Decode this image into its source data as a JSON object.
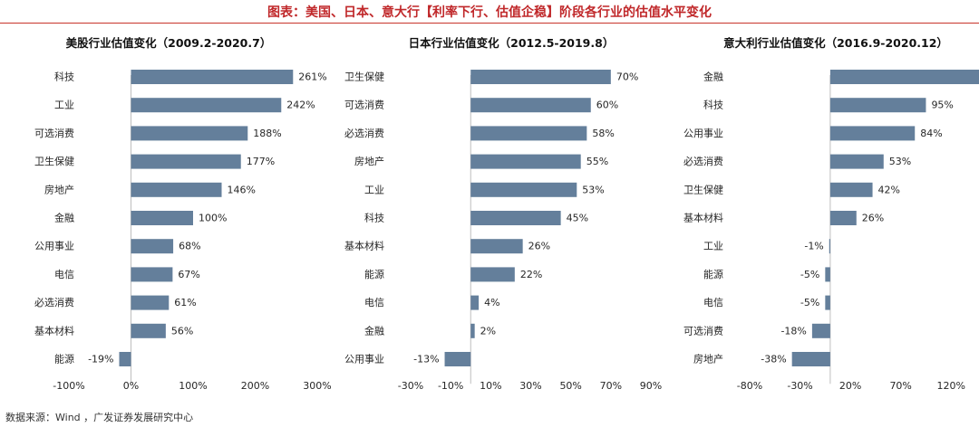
{
  "header": {
    "title": "图表：美国、日本、意大行【利率下行、估值企稳】阶段各行业的估值水平变化"
  },
  "footer": {
    "source": "数据来源：Wind ，广发证券发展研究中心"
  },
  "colors": {
    "bar": "#647f9b",
    "title_red": "#c0282a",
    "axis": "#bfbfbf",
    "text": "#262626"
  },
  "chart_data": [
    {
      "type": "bar",
      "orientation": "horizontal",
      "title": "美股行业估值变化（2009.2-2020.7）",
      "categories": [
        "科技",
        "工业",
        "可选消费",
        "卫生保健",
        "房地产",
        "金融",
        "公用事业",
        "电信",
        "必选消费",
        "基本材料",
        "能源"
      ],
      "values": [
        261,
        242,
        188,
        177,
        146,
        100,
        68,
        67,
        61,
        56,
        -19
      ],
      "value_labels": [
        "261%",
        "242%",
        "188%",
        "177%",
        "146%",
        "100%",
        "68%",
        "67%",
        "61%",
        "56%",
        "-19%"
      ],
      "xlim": [
        -100,
        300
      ],
      "ticks": [
        -100,
        0,
        100,
        200,
        300
      ],
      "tick_labels": [
        "-100%",
        "0%",
        "100%",
        "200%",
        "300%"
      ]
    },
    {
      "type": "bar",
      "orientation": "horizontal",
      "title": "日本行业估值变化（2012.5-2019.8）",
      "categories": [
        "卫生保健",
        "可选消费",
        "必选消费",
        "房地产",
        "工业",
        "科技",
        "基本材料",
        "能源",
        "电信",
        "金融",
        "公用事业"
      ],
      "values": [
        70,
        60,
        58,
        55,
        53,
        45,
        26,
        22,
        4,
        2,
        -13
      ],
      "value_labels": [
        "70%",
        "60%",
        "58%",
        "55%",
        "53%",
        "45%",
        "26%",
        "22%",
        "4%",
        "2%",
        "-13%"
      ],
      "xlim": [
        -30,
        90
      ],
      "ticks": [
        -30,
        -10,
        10,
        30,
        50,
        70,
        90
      ],
      "tick_labels": [
        "-30%",
        "-10%",
        "10%",
        "30%",
        "50%",
        "70%",
        "90%"
      ]
    },
    {
      "type": "bar",
      "orientation": "horizontal",
      "title": "意大利行业估值变化（2016.9-2020.12）",
      "categories": [
        "金融",
        "科技",
        "公用事业",
        "必选消费",
        "卫生保健",
        "基本材料",
        "工业",
        "能源",
        "电信",
        "可选消费",
        "房地产"
      ],
      "values": [
        150,
        95,
        84,
        53,
        42,
        26,
        -1,
        -5,
        -5,
        -18,
        -38
      ],
      "value_labels": [
        "",
        "95%",
        "84%",
        "53%",
        "42%",
        "26%",
        "-1%",
        "-5%",
        "-5%",
        "-18%",
        "-38%"
      ],
      "xlim": [
        -80,
        145
      ],
      "ticks": [
        -80,
        -30,
        20,
        70,
        120
      ],
      "tick_labels": [
        "-80%",
        "-30%",
        "20%",
        "70%",
        "120%"
      ]
    }
  ]
}
